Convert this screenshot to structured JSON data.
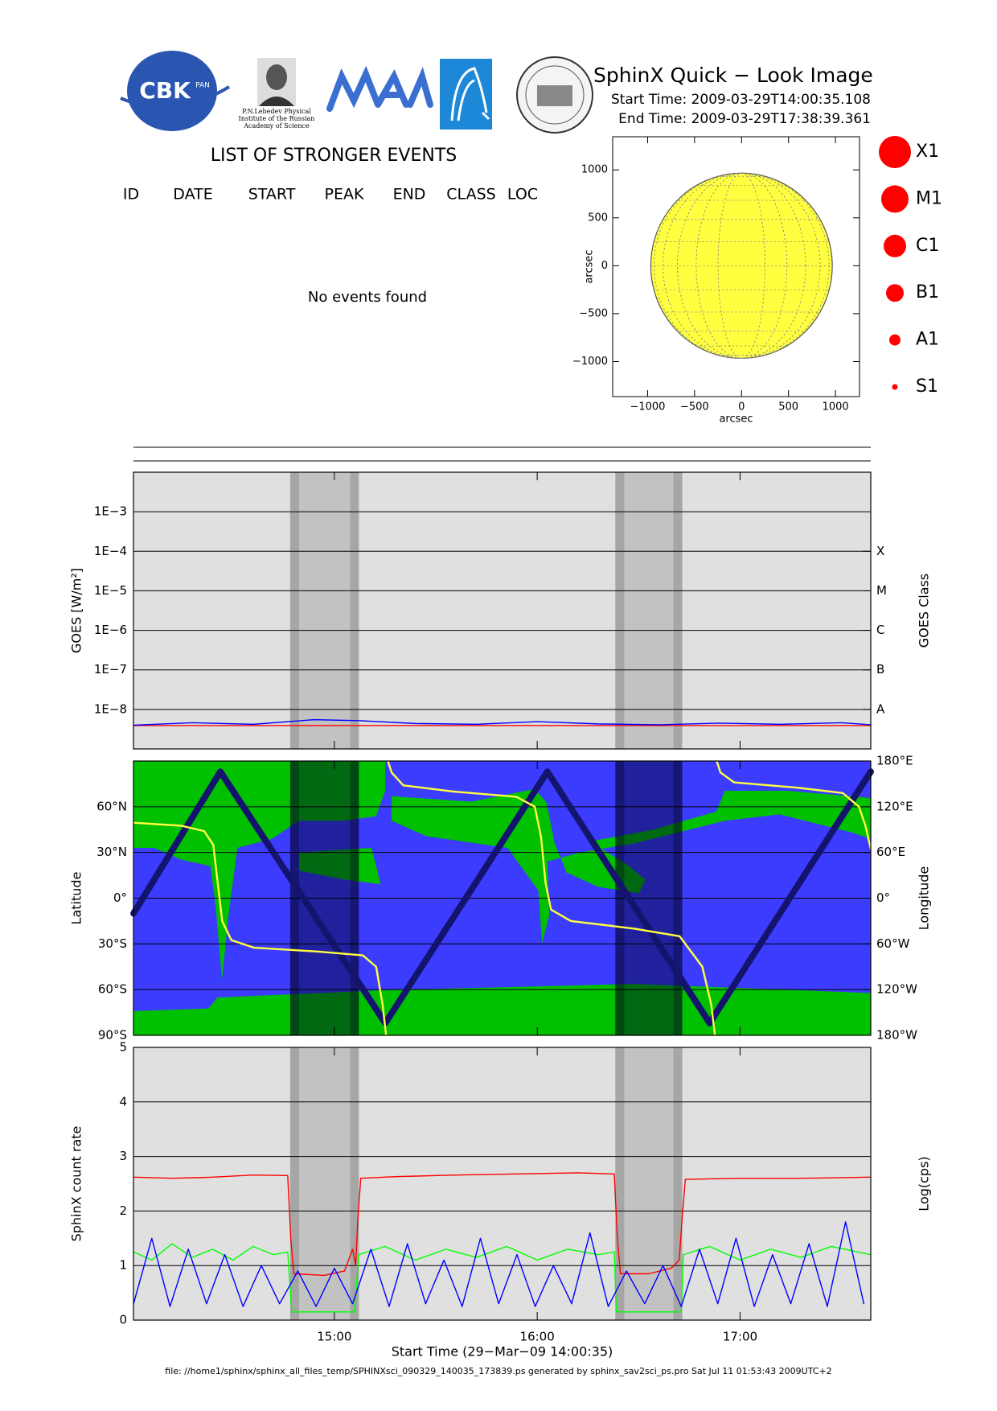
{
  "header": {
    "title": "SphinX Quick − Look Image",
    "start_time": "Start Time: 2009-03-29T14:00:35.108",
    "end_time": "End Time: 2009-03-29T17:38:39.361",
    "logo_texts": [
      "CBK",
      "PAN",
      "P.N.Lebedev Physical",
      "Institute of the Russian",
      "Academy of Science"
    ]
  },
  "events": {
    "title": "LIST OF STRONGER EVENTS",
    "columns": [
      "ID",
      "DATE",
      "START",
      "PEAK",
      "END",
      "CLASS",
      "LOC"
    ],
    "message": "No events found"
  },
  "class_legend": {
    "labels": [
      "X1",
      "M1",
      "C1",
      "B1",
      "A1",
      "S1"
    ],
    "color": "#ff0000"
  },
  "footer": "file: //home1/sphinx/sphinx_all_files_temp/SPHINXsci_090329_140035_173839.ps generated by sphinx_sav2sci_ps.pro Sat Jul 11 01:53:43 2009UTC+2",
  "chart_data": [
    {
      "type": "disk",
      "xlabel": "arcsec",
      "ylabel": "arcsec",
      "xlim": [
        -1372,
        1256
      ],
      "ylim": [
        -1365,
        1346
      ],
      "xticks": [
        {
          "value": -1000,
          "label": "−1000"
        },
        {
          "value": -500,
          "label": "−500"
        },
        0,
        500,
        1000
      ],
      "yticks": [
        {
          "value": -1000,
          "label": "−1000"
        },
        {
          "value": -500,
          "label": "−500"
        },
        0,
        500,
        1000
      ],
      "disk_radius": 966,
      "color": "#ffff40"
    },
    {
      "type": "line",
      "ylabel": "GOES [W/m²]",
      "y2label": "GOES Class",
      "log": true,
      "xlim": [
        14.0097,
        17.6442
      ],
      "xticks": [
        15,
        16,
        17
      ],
      "ylim": [
        1e-09,
        0.01
      ],
      "yticks": [
        {
          "value": 0.001,
          "label": "1E−3"
        },
        {
          "value": 0.0001,
          "label": "1E−4"
        },
        {
          "value": 1e-05,
          "label": "1E−5"
        },
        {
          "value": 1e-06,
          "label": "1E−6"
        },
        {
          "value": 1e-07,
          "label": "1E−7"
        },
        {
          "value": 1e-08,
          "label": "1E−8"
        }
      ],
      "class_ticks": [
        {
          "value": 0.0001,
          "label": "X"
        },
        {
          "value": 1e-05,
          "label": "M"
        },
        {
          "value": 1e-06,
          "label": "C"
        },
        {
          "value": 1e-07,
          "label": "B"
        },
        {
          "value": 1e-08,
          "label": "A"
        }
      ],
      "background": "#e0e0e0",
      "shade_colors": {
        "umbra": "#c2c2c2",
        "penumbra": "#a6a6a6"
      },
      "umbra": [
        [
          14.827,
          15.077
        ],
        [
          16.43,
          16.671
        ]
      ],
      "penumbra": [
        [
          14.782,
          14.827
        ],
        [
          15.077,
          15.121
        ],
        [
          16.385,
          16.43
        ],
        [
          16.671,
          16.715
        ]
      ],
      "series": [
        {
          "color": "#ff0000",
          "x": [
            14.01,
            17.644
          ],
          "values": [
            3.9e-09,
            3.9e-09
          ]
        },
        {
          "color": "#0000ff",
          "x": [
            14.01,
            14.3,
            14.6,
            14.9,
            15.12,
            15.4,
            15.7,
            16.0,
            16.3,
            16.6,
            16.9,
            17.2,
            17.5,
            17.644
          ],
          "values": [
            4e-09,
            4.6e-09,
            4.2e-09,
            5.5e-09,
            5.2e-09,
            4.4e-09,
            4.2e-09,
            4.9e-09,
            4.3e-09,
            4.1e-09,
            4.5e-09,
            4.2e-09,
            4.6e-09,
            4.1e-09
          ]
        }
      ]
    },
    {
      "type": "line",
      "ylabel": "Latitude",
      "y2label": "Longitude",
      "xlim": [
        14.0097,
        17.6442
      ],
      "xticks": [
        15,
        16,
        17
      ],
      "ylim": [
        -90,
        90
      ],
      "yticks": [
        {
          "value": -90,
          "label": "90°S"
        },
        {
          "value": -60,
          "label": "60°S"
        },
        {
          "value": -30,
          "label": "30°S"
        },
        {
          "value": 0,
          "label": "0°"
        },
        {
          "value": 30,
          "label": "30°N"
        },
        {
          "value": 60,
          "label": "60°N"
        }
      ],
      "y2lim": [
        -180,
        180
      ],
      "y2ticks": [
        {
          "value": -180,
          "label": "180°W"
        },
        {
          "value": -120,
          "label": "120°W"
        },
        {
          "value": -60,
          "label": "60°W"
        },
        {
          "value": 0,
          "label": "0°"
        },
        {
          "value": 60,
          "label": "60°E"
        },
        {
          "value": 120,
          "label": "120°E"
        },
        {
          "value": 180,
          "label": "180°E"
        }
      ],
      "background": "#3c3cff",
      "shade_colors": {
        "umbra": "rgba(0,0,40,0.45)",
        "penumbra": "rgba(0,0,30,0.62)"
      },
      "umbra": [
        [
          14.827,
          15.077
        ],
        [
          16.43,
          16.671
        ]
      ],
      "penumbra": [
        [
          14.782,
          14.827
        ],
        [
          15.077,
          15.121
        ],
        [
          16.385,
          16.43
        ],
        [
          16.671,
          16.715
        ]
      ],
      "series": [
        {
          "color": "#14146e",
          "x": [
            14.01,
            14.438,
            15.251,
            16.05,
            16.85,
            17.644
          ],
          "values": [
            -10,
            83,
            -82,
            83,
            -82,
            83
          ]
        },
        {
          "color": "#ffff40",
          "axis": "y2",
          "x": [
            14.01,
            14.246,
            14.358,
            14.403,
            14.425,
            14.447,
            14.492,
            14.604,
            14.916,
            15.14,
            15.206,
            15.238,
            15.255,
            15.26,
            15.264,
            15.282,
            15.34,
            15.586,
            15.898,
            15.988,
            16.019,
            16.041,
            16.068,
            16.166,
            16.479,
            16.702,
            16.814,
            16.858,
            16.876,
            16.88,
            16.885,
            16.903,
            16.97,
            17.283,
            17.506,
            17.586,
            17.618,
            17.644
          ],
          "values": [
            99,
            95,
            88,
            70,
            20,
            -30,
            -55,
            -65,
            -70,
            -75,
            -90,
            -140,
            -180,
            null,
            180,
            165,
            148,
            140,
            133,
            120,
            80,
            20,
            -15,
            -30,
            -40,
            -50,
            -90,
            -140,
            -180,
            null,
            180,
            165,
            152,
            145,
            138,
            120,
            95,
            65
          ]
        }
      ]
    },
    {
      "type": "line",
      "ylabel": "SphinX count rate",
      "y2label": "Log(cps)",
      "xlabel": "Start Time (29−Mar−09 14:00:35)",
      "xlim": [
        14.0097,
        17.6442
      ],
      "xticks": [
        {
          "value": 15,
          "label": "15:00"
        },
        {
          "value": 16,
          "label": "16:00"
        },
        {
          "value": 17,
          "label": "17:00"
        }
      ],
      "ylim": [
        0,
        5
      ],
      "yticks": [
        0,
        1,
        2,
        3,
        4,
        5
      ],
      "background": "#e0e0e0",
      "shade_colors": {
        "umbra": "#c2c2c2",
        "penumbra": "#a6a6a6"
      },
      "umbra": [
        [
          14.827,
          15.077
        ],
        [
          16.43,
          16.671
        ]
      ],
      "penumbra": [
        [
          14.782,
          14.827
        ],
        [
          15.077,
          15.121
        ],
        [
          16.385,
          16.43
        ],
        [
          16.671,
          16.715
        ]
      ],
      "series": [
        {
          "color": "#ff0000",
          "x": [
            14.01,
            14.2,
            14.4,
            14.6,
            14.77,
            14.785,
            14.8,
            14.95,
            15.05,
            15.09,
            15.105,
            15.115,
            15.13,
            15.3,
            15.6,
            15.9,
            16.2,
            16.38,
            16.395,
            16.41,
            16.55,
            16.66,
            16.7,
            16.715,
            16.73,
            17.0,
            17.3,
            17.644
          ],
          "values": [
            2.62,
            2.6,
            2.62,
            2.66,
            2.65,
            1.5,
            0.85,
            0.82,
            0.9,
            1.3,
            1.0,
            1.8,
            2.6,
            2.63,
            2.66,
            2.68,
            2.7,
            2.68,
            1.5,
            0.85,
            0.85,
            0.95,
            1.1,
            1.9,
            2.58,
            2.6,
            2.6,
            2.62
          ]
        },
        {
          "color": "#00ff00",
          "x": [
            14.01,
            14.1,
            14.2,
            14.3,
            14.4,
            14.5,
            14.6,
            14.7,
            14.77,
            14.79,
            15.1,
            15.12,
            15.25,
            15.4,
            15.55,
            15.7,
            15.85,
            16.0,
            16.15,
            16.3,
            16.38,
            16.39,
            16.71,
            16.72,
            16.85,
            17.0,
            17.15,
            17.3,
            17.45,
            17.644
          ],
          "values": [
            1.25,
            1.1,
            1.4,
            1.15,
            1.3,
            1.1,
            1.35,
            1.2,
            1.25,
            0.15,
            0.15,
            1.2,
            1.35,
            1.1,
            1.3,
            1.15,
            1.35,
            1.1,
            1.3,
            1.2,
            1.25,
            0.15,
            0.15,
            1.2,
            1.35,
            1.1,
            1.3,
            1.15,
            1.35,
            1.2
          ]
        },
        {
          "color": "#0000ff",
          "x": [
            14.01,
            14.1,
            14.19,
            14.28,
            14.37,
            14.46,
            14.55,
            14.64,
            14.73,
            14.82,
            14.91,
            15.0,
            15.09,
            15.18,
            15.27,
            15.36,
            15.45,
            15.54,
            15.63,
            15.72,
            15.81,
            15.9,
            15.99,
            16.08,
            16.17,
            16.26,
            16.35,
            16.44,
            16.53,
            16.62,
            16.71,
            16.8,
            16.89,
            16.98,
            17.07,
            17.16,
            17.25,
            17.34,
            17.43,
            17.52,
            17.61
          ],
          "values": [
            0.3,
            1.5,
            0.25,
            1.3,
            0.3,
            1.2,
            0.25,
            1.0,
            0.3,
            0.9,
            0.25,
            0.95,
            0.3,
            1.3,
            0.25,
            1.4,
            0.3,
            1.1,
            0.25,
            1.5,
            0.3,
            1.2,
            0.25,
            1.0,
            0.3,
            1.6,
            0.25,
            0.9,
            0.3,
            1.0,
            0.25,
            1.3,
            0.3,
            1.5,
            0.25,
            1.2,
            0.3,
            1.4,
            0.25,
            1.8,
            0.3
          ]
        }
      ]
    }
  ]
}
